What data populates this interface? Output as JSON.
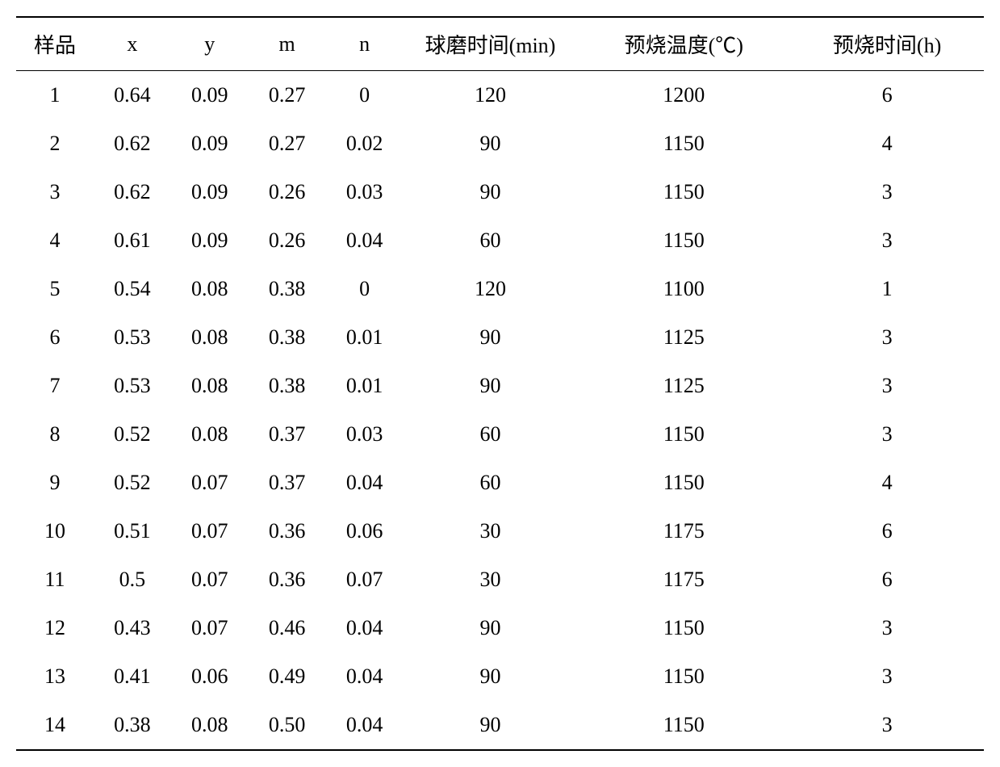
{
  "table": {
    "columns": [
      "样品",
      "x",
      "y",
      "m",
      "n",
      "球磨时间(min)",
      "预烧温度(℃)",
      "预烧时间(h)"
    ],
    "rows": [
      [
        "1",
        "0.64",
        "0.09",
        "0.27",
        "0",
        "120",
        "1200",
        "6"
      ],
      [
        "2",
        "0.62",
        "0.09",
        "0.27",
        "0.02",
        "90",
        "1150",
        "4"
      ],
      [
        "3",
        "0.62",
        "0.09",
        "0.26",
        "0.03",
        "90",
        "1150",
        "3"
      ],
      [
        "4",
        "0.61",
        "0.09",
        "0.26",
        "0.04",
        "60",
        "1150",
        "3"
      ],
      [
        "5",
        "0.54",
        "0.08",
        "0.38",
        "0",
        "120",
        "1100",
        "1"
      ],
      [
        "6",
        "0.53",
        "0.08",
        "0.38",
        "0.01",
        "90",
        "1125",
        "3"
      ],
      [
        "7",
        "0.53",
        "0.08",
        "0.38",
        "0.01",
        "90",
        "1125",
        "3"
      ],
      [
        "8",
        "0.52",
        "0.08",
        "0.37",
        "0.03",
        "60",
        "1150",
        "3"
      ],
      [
        "9",
        "0.52",
        "0.07",
        "0.37",
        "0.04",
        "60",
        "1150",
        "4"
      ],
      [
        "10",
        "0.51",
        "0.07",
        "0.36",
        "0.06",
        "30",
        "1175",
        "6"
      ],
      [
        "11",
        "0.5",
        "0.07",
        "0.36",
        "0.07",
        "30",
        "1175",
        "6"
      ],
      [
        "12",
        "0.43",
        "0.07",
        "0.46",
        "0.04",
        "90",
        "1150",
        "3"
      ],
      [
        "13",
        "0.41",
        "0.06",
        "0.49",
        "0.04",
        "90",
        "1150",
        "3"
      ],
      [
        "14",
        "0.38",
        "0.08",
        "0.50",
        "0.04",
        "90",
        "1150",
        "3"
      ]
    ],
    "column_classes": [
      "col-sample",
      "col-x",
      "col-y",
      "col-m",
      "col-n",
      "col-mill",
      "col-temp",
      "col-time"
    ],
    "border_color": "#000000",
    "background_color": "#ffffff",
    "text_color": "#000000",
    "font_size": 26
  }
}
